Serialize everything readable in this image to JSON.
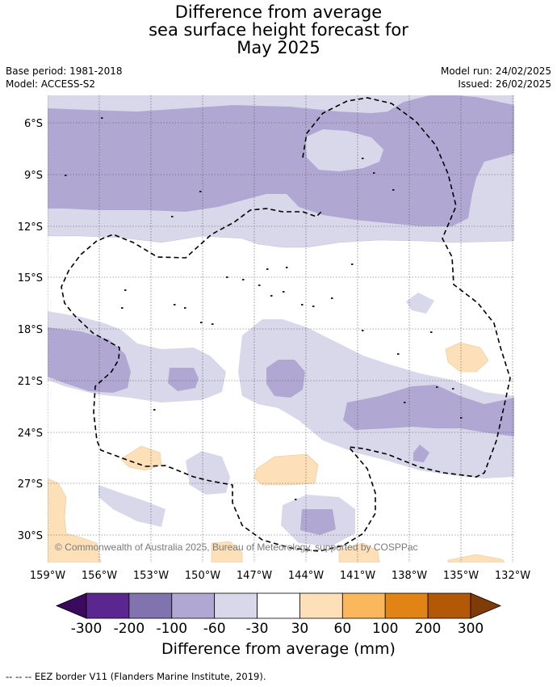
{
  "title": {
    "line1": "Difference from average",
    "line2": "sea surface height forecast for",
    "line3": "May 2025"
  },
  "meta": {
    "base_period": "Base period: 1981-2018",
    "model": "Model: ACCESS-S2",
    "model_run": "Model run: 24/02/2025",
    "issued": "Issued: 26/02/2025"
  },
  "map": {
    "lat_labels": [
      "6°S",
      "9°S",
      "12°S",
      "15°S",
      "18°S",
      "21°S",
      "24°S",
      "27°S",
      "30°S"
    ],
    "lon_labels": [
      "159°W",
      "156°W",
      "153°W",
      "150°W",
      "147°W",
      "144°W",
      "141°W",
      "138°W",
      "135°W",
      "132°W"
    ],
    "copyright": "© Commonwealth of Australia 2025, Bureau of Meteorology, supported by COSPPac",
    "colors": {
      "neg_light": "#d8d8ea",
      "neg_mid": "#b0a8d2",
      "pos_light": "#fde0b8"
    }
  },
  "colorbar": {
    "tick_labels": [
      "-300",
      "-200",
      "-100",
      "-60",
      "-30",
      "30",
      "60",
      "100",
      "200",
      "300"
    ],
    "colors": [
      "#3a0a5c",
      "#5b2690",
      "#8173ad",
      "#b0a8d2",
      "#d8d8ea",
      "#ffffff",
      "#fde0b8",
      "#fbb75c",
      "#e28316",
      "#b35806",
      "#7f3b08"
    ],
    "label": "Difference from average (mm)"
  },
  "footer": "--  --  -- EEZ border V11 (Flanders Marine Institute, 2019)."
}
